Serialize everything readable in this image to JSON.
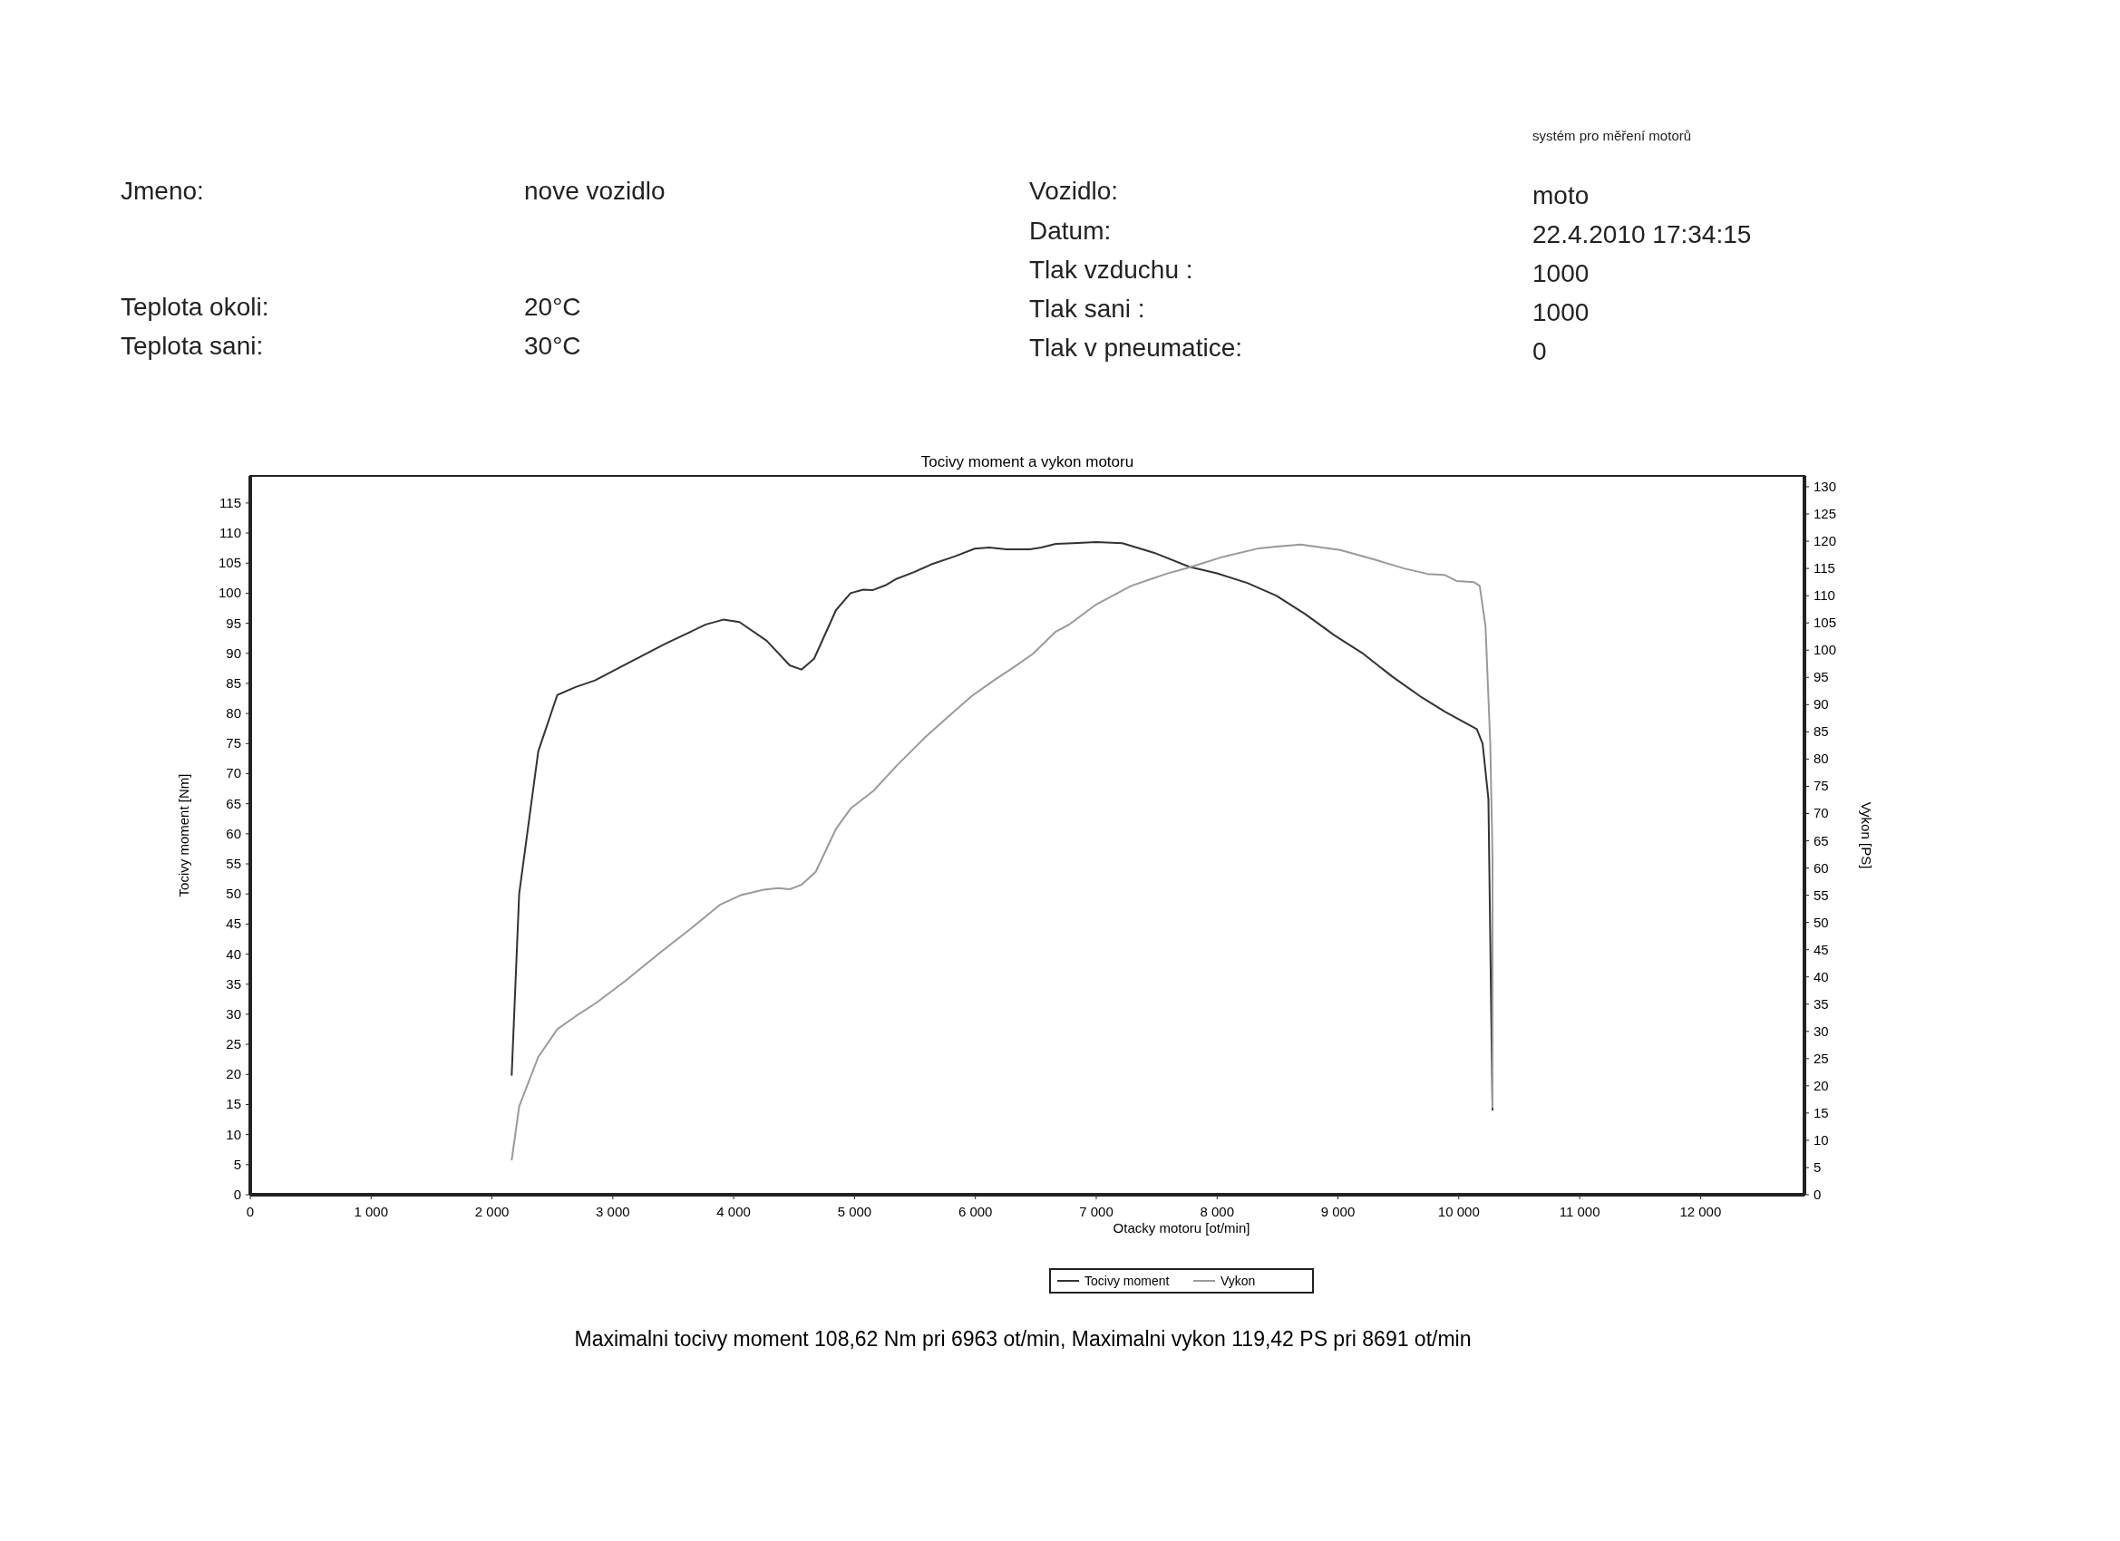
{
  "chart_data": {
    "type": "line",
    "title": "Tocivy moment a vykon motoru",
    "xlabel": "Otacky motoru [ot/min]",
    "ylabel": "Tocivy moment [Nm]",
    "y2label": "Vykon [PS]",
    "xlim": [
      0,
      12860
    ],
    "xticks": [
      0,
      {
        "value": 1000,
        "label": "1 000"
      },
      {
        "value": 2000,
        "label": "2 000"
      },
      {
        "value": 3000,
        "label": "3 000"
      },
      {
        "value": 4000,
        "label": "4 000"
      },
      {
        "value": 5000,
        "label": "5 000"
      },
      {
        "value": 6000,
        "label": "6 000"
      },
      {
        "value": 7000,
        "label": "7 000"
      },
      {
        "value": 8000,
        "label": "8 000"
      },
      {
        "value": 9000,
        "label": "9 000"
      },
      {
        "value": 10000,
        "label": "10 000"
      },
      {
        "value": 11000,
        "label": "11 000"
      },
      {
        "value": 12000,
        "label": "12 000"
      }
    ],
    "ylim": [
      0,
      119.5
    ],
    "yticks": [
      0,
      5,
      10,
      15,
      20,
      25,
      30,
      35,
      40,
      45,
      50,
      55,
      60,
      65,
      70,
      75,
      80,
      85,
      90,
      95,
      100,
      105,
      110,
      115
    ],
    "y2lim": [
      0,
      132
    ],
    "y2ticks": [
      0,
      5,
      10,
      15,
      20,
      25,
      30,
      35,
      40,
      45,
      50,
      55,
      60,
      65,
      70,
      75,
      80,
      85,
      90,
      95,
      100,
      105,
      110,
      115,
      120,
      125,
      130
    ],
    "grid": false,
    "legend": "bottom",
    "marker": "none",
    "line_style": "solid",
    "series": [
      {
        "name": "Tocivy moment",
        "color": "#333333",
        "x": [
          2163,
          2225,
          2383,
          2541,
          2694,
          2852,
          3139,
          3435,
          3770,
          3914,
          4048,
          4273,
          4464,
          4560,
          4665,
          4847,
          4967,
          5072,
          5148,
          5254,
          5349,
          5493,
          5636,
          5828,
          5995,
          6115,
          6258,
          6450,
          6545,
          6665,
          6808,
          7000,
          7216,
          7481,
          7769,
          8000,
          8250,
          8490,
          8731,
          8971,
          9212,
          9452,
          9692,
          9885,
          10029,
          10149,
          10197,
          10245,
          10279
        ],
        "values": [
          19.8,
          50,
          73.7,
          83.1,
          84.4,
          85.5,
          88.5,
          91.6,
          94.8,
          95.6,
          95.2,
          92.1,
          88,
          87.3,
          89.1,
          97.2,
          100,
          100.6,
          100.5,
          101.3,
          102.4,
          103.5,
          104.8,
          106.1,
          107.4,
          107.6,
          107.3,
          107.3,
          107.6,
          108.2,
          108.3,
          108.5,
          108.3,
          106.7,
          104.4,
          103.3,
          101.7,
          99.6,
          96.5,
          93,
          89.9,
          86.1,
          82.7,
          80.3,
          78.7,
          77.4,
          75,
          65.8,
          14
        ]
      },
      {
        "name": "Vykon",
        "color": "#9a9a9a",
        "axis": "y2",
        "x": [
          2163,
          2225,
          2383,
          2541,
          2694,
          2861,
          3100,
          3388,
          3675,
          3890,
          4057,
          4249,
          4368,
          4464,
          4560,
          4679,
          4847,
          4967,
          5158,
          5349,
          5589,
          5780,
          5971,
          6163,
          6306,
          6474,
          6665,
          6775,
          7000,
          7288,
          7577,
          7769,
          8058,
          8346,
          8490,
          8691,
          9019,
          9308,
          9548,
          9740,
          9885,
          9981,
          10125,
          10173,
          10221,
          10260,
          10279,
          10279
        ],
        "values": [
          6.3,
          16.2,
          25.3,
          30.4,
          32.8,
          35.2,
          39.2,
          44.4,
          49.4,
          53.3,
          55,
          56,
          56.3,
          56.1,
          56.9,
          59.3,
          67.2,
          70.9,
          74.2,
          78.8,
          84.1,
          87.9,
          91.6,
          94.6,
          96.7,
          99.3,
          103.4,
          104.7,
          108.4,
          111.8,
          114,
          115.2,
          117.2,
          118.7,
          119,
          119.4,
          118.4,
          116.6,
          115,
          114,
          113.8,
          112.7,
          112.5,
          111.8,
          104.4,
          83.1,
          61.8,
          15.9
        ]
      }
    ],
    "annotations": [
      "systém pro měření motorů",
      "Jmeno:",
      "nove vozidlo",
      "Vozidlo:",
      "moto",
      "Datum:",
      "22.4.2010 17:34:15",
      "Tlak vzduchu :",
      "1000",
      "Teplota okoli:",
      "20°C",
      "Tlak sani :",
      "1000",
      "Teplota sani:",
      "30°C",
      "Tlak v pneumatice:",
      "0",
      "Maximalni tocivy moment 108,62 Nm pri 6963 ot/min,  Maximalni vykon 119,42 PS pri 8691 ot/min"
    ]
  }
}
